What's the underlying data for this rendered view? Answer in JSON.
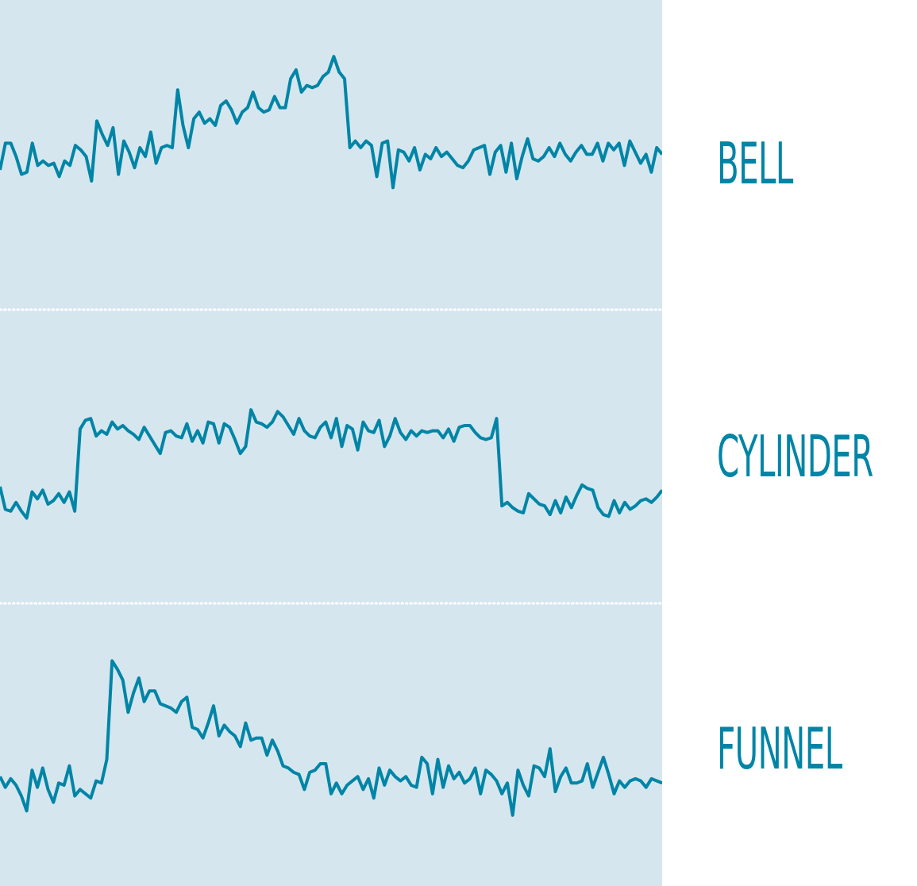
{
  "colors": {
    "panel_background": "#d6e6ef",
    "line": "#0085a6",
    "label": "#0085a6",
    "divider": "#ffffff"
  },
  "chart_data": [
    {
      "type": "line",
      "label": "BELL",
      "values": [
        0.45,
        0.57,
        0.57,
        0.51,
        0.43,
        0.44,
        0.57,
        0.47,
        0.49,
        0.47,
        0.48,
        0.42,
        0.49,
        0.47,
        0.56,
        0.54,
        0.51,
        0.4,
        0.67,
        0.61,
        0.56,
        0.64,
        0.43,
        0.58,
        0.53,
        0.46,
        0.55,
        0.51,
        0.62,
        0.48,
        0.55,
        0.56,
        0.55,
        0.81,
        0.65,
        0.55,
        0.68,
        0.71,
        0.66,
        0.68,
        0.65,
        0.74,
        0.76,
        0.72,
        0.66,
        0.71,
        0.73,
        0.8,
        0.73,
        0.71,
        0.72,
        0.78,
        0.73,
        0.73,
        0.86,
        0.9,
        0.8,
        0.83,
        0.82,
        0.83,
        0.87,
        0.89,
        0.96,
        0.89,
        0.86,
        0.55,
        0.58,
        0.55,
        0.58,
        0.56,
        0.42,
        0.57,
        0.58,
        0.37,
        0.54,
        0.53,
        0.49,
        0.55,
        0.45,
        0.52,
        0.5,
        0.55,
        0.51,
        0.53,
        0.5,
        0.47,
        0.46,
        0.49,
        0.54,
        0.55,
        0.56,
        0.43,
        0.53,
        0.56,
        0.44,
        0.57,
        0.41,
        0.51,
        0.59,
        0.5,
        0.49,
        0.51,
        0.55,
        0.51,
        0.57,
        0.52,
        0.49,
        0.53,
        0.56,
        0.52,
        0.52,
        0.57,
        0.49,
        0.57,
        0.54,
        0.57,
        0.47,
        0.58,
        0.53,
        0.48,
        0.52,
        0.44,
        0.55,
        0.52
      ],
      "y_min": 0,
      "y_max": 1
    },
    {
      "type": "line",
      "label": "CYLINDER",
      "values": [
        0.35,
        0.22,
        0.21,
        0.26,
        0.21,
        0.17,
        0.32,
        0.28,
        0.33,
        0.25,
        0.27,
        0.31,
        0.26,
        0.32,
        0.21,
        0.68,
        0.73,
        0.74,
        0.64,
        0.67,
        0.65,
        0.72,
        0.68,
        0.7,
        0.67,
        0.65,
        0.62,
        0.69,
        0.64,
        0.59,
        0.54,
        0.66,
        0.67,
        0.64,
        0.63,
        0.71,
        0.61,
        0.67,
        0.6,
        0.72,
        0.71,
        0.6,
        0.71,
        0.69,
        0.62,
        0.54,
        0.58,
        0.79,
        0.72,
        0.71,
        0.69,
        0.72,
        0.78,
        0.75,
        0.7,
        0.65,
        0.74,
        0.67,
        0.64,
        0.63,
        0.69,
        0.72,
        0.63,
        0.74,
        0.58,
        0.7,
        0.68,
        0.56,
        0.72,
        0.67,
        0.66,
        0.73,
        0.58,
        0.64,
        0.74,
        0.66,
        0.62,
        0.67,
        0.64,
        0.67,
        0.66,
        0.67,
        0.67,
        0.63,
        0.68,
        0.61,
        0.69,
        0.7,
        0.7,
        0.66,
        0.63,
        0.62,
        0.63,
        0.74,
        0.24,
        0.26,
        0.23,
        0.21,
        0.2,
        0.31,
        0.28,
        0.25,
        0.24,
        0.19,
        0.27,
        0.2,
        0.29,
        0.23,
        0.3,
        0.36,
        0.34,
        0.33,
        0.23,
        0.19,
        0.18,
        0.27,
        0.2,
        0.26,
        0.22,
        0.24,
        0.27,
        0.28,
        0.26,
        0.29,
        0.33
      ],
      "y_min": 0,
      "y_max": 1
    },
    {
      "type": "line",
      "label": "FUNNEL",
      "values": [
        0.34,
        0.29,
        0.33,
        0.3,
        0.25,
        0.18,
        0.37,
        0.29,
        0.38,
        0.28,
        0.22,
        0.31,
        0.3,
        0.39,
        0.25,
        0.28,
        0.26,
        0.24,
        0.32,
        0.31,
        0.42,
        0.88,
        0.84,
        0.79,
        0.64,
        0.73,
        0.8,
        0.69,
        0.74,
        0.74,
        0.68,
        0.67,
        0.66,
        0.64,
        0.69,
        0.71,
        0.57,
        0.56,
        0.52,
        0.59,
        0.67,
        0.53,
        0.58,
        0.55,
        0.53,
        0.48,
        0.59,
        0.51,
        0.52,
        0.52,
        0.44,
        0.51,
        0.46,
        0.39,
        0.38,
        0.36,
        0.35,
        0.28,
        0.36,
        0.37,
        0.4,
        0.4,
        0.26,
        0.31,
        0.26,
        0.3,
        0.32,
        0.34,
        0.28,
        0.33,
        0.24,
        0.38,
        0.3,
        0.37,
        0.34,
        0.32,
        0.34,
        0.3,
        0.29,
        0.43,
        0.4,
        0.26,
        0.42,
        0.29,
        0.39,
        0.33,
        0.36,
        0.31,
        0.33,
        0.38,
        0.26,
        0.37,
        0.35,
        0.32,
        0.26,
        0.31,
        0.16,
        0.37,
        0.3,
        0.25,
        0.39,
        0.38,
        0.34,
        0.47,
        0.27,
        0.34,
        0.38,
        0.31,
        0.31,
        0.32,
        0.4,
        0.29,
        0.36,
        0.43,
        0.35,
        0.26,
        0.32,
        0.29,
        0.32,
        0.33,
        0.32,
        0.29,
        0.33,
        0.32,
        0.31
      ],
      "y_min": 0,
      "y_max": 1
    }
  ]
}
